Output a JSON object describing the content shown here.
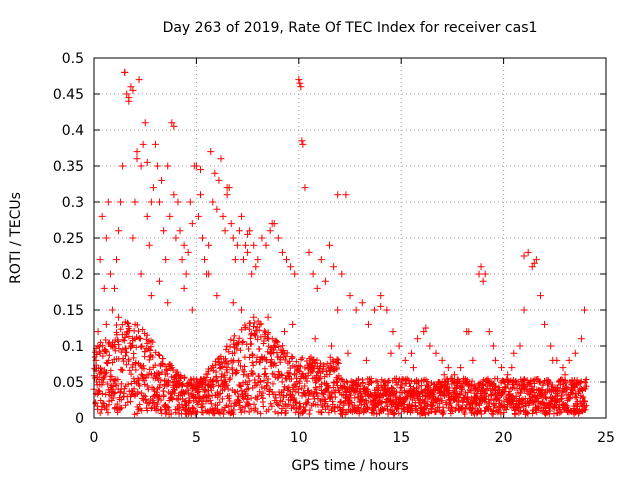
{
  "chart_data": {
    "type": "scatter",
    "title": "Day 263 of 2019, Rate Of TEC Index for receiver cas1",
    "xlabel": "GPS time / hours",
    "ylabel": "ROTI / TECUs",
    "xlim": [
      0,
      25
    ],
    "ylim": [
      0,
      0.5
    ],
    "xticks": [
      0,
      5,
      10,
      15,
      20,
      25
    ],
    "xtick_labels": [
      "0",
      "5",
      "10",
      "15",
      "20",
      "25"
    ],
    "yticks": [
      0,
      0.05,
      0.1,
      0.15,
      0.2,
      0.25,
      0.3,
      0.35,
      0.4,
      0.45,
      0.5
    ],
    "ytick_labels": [
      "0",
      "0.05",
      "0.1",
      "0.15",
      "0.2",
      "0.25",
      "0.3",
      "0.35",
      "0.4",
      "0.45",
      "0.5"
    ],
    "grid": true,
    "marker": "+",
    "series_color": "#ff0000",
    "series": [
      {
        "name": "ROTI",
        "x": [
          0.0,
          0.1,
          0.2,
          0.3,
          0.4,
          0.5,
          0.6,
          0.7,
          0.8,
          0.9,
          1.0,
          1.1,
          1.2,
          1.3,
          1.4,
          1.5,
          1.6,
          1.7,
          1.8,
          1.9,
          2.0,
          2.1,
          2.2,
          2.3,
          2.4,
          2.5,
          2.6,
          2.7,
          2.8,
          2.9,
          3.0,
          3.1,
          3.2,
          3.3,
          3.4,
          3.5,
          3.6,
          3.7,
          3.8,
          3.9,
          4.0,
          4.1,
          4.2,
          4.3,
          4.4,
          4.5,
          4.6,
          4.7,
          4.8,
          4.9,
          5.0,
          5.1,
          5.2,
          5.3,
          5.4,
          5.5,
          5.6,
          5.7,
          5.8,
          5.9,
          6.0,
          6.1,
          6.2,
          6.3,
          6.4,
          6.5,
          6.6,
          6.7,
          6.8,
          6.9,
          7.0,
          7.1,
          7.2,
          7.3,
          7.4,
          7.5,
          7.6,
          7.7,
          7.8,
          7.9,
          8.0,
          8.2,
          8.4,
          8.6,
          8.8,
          9.0,
          9.2,
          9.4,
          9.6,
          9.8,
          10.0,
          10.1,
          10.2,
          10.3,
          10.5,
          10.7,
          10.9,
          11.1,
          11.3,
          11.5,
          11.7,
          11.9,
          12.1,
          12.3,
          12.5,
          12.8,
          13.1,
          13.4,
          13.7,
          14.0,
          14.3,
          14.6,
          14.9,
          15.2,
          15.5,
          15.8,
          16.1,
          16.4,
          16.7,
          17.0,
          17.3,
          17.6,
          17.9,
          18.2,
          18.5,
          18.8,
          18.9,
          19.0,
          19.1,
          19.3,
          19.6,
          19.9,
          20.2,
          20.5,
          20.8,
          21.0,
          21.2,
          21.4,
          21.6,
          21.8,
          22.0,
          22.3,
          22.6,
          22.9,
          23.2,
          23.5,
          23.8,
          23.95,
          1.5,
          1.7,
          1.9,
          2.1,
          2.3,
          10.05,
          10.15,
          3.9,
          2.6,
          5.2,
          6.5,
          7.5,
          8.7,
          11.9,
          14.0,
          16.2,
          18.3,
          21.0,
          21.5,
          0.3,
          0.6,
          0.9,
          1.2,
          2.8,
          3.2,
          3.6,
          4.4,
          4.8,
          5.6,
          6.0,
          6.8,
          7.2,
          7.8,
          8.1,
          8.5,
          9.3,
          9.7,
          10.8,
          11.6,
          12.4,
          13.3,
          14.5,
          15.6,
          17.1,
          19.5,
          20.4,
          22.4,
          23.0
        ],
        "y": [
          0.04,
          0.08,
          0.12,
          0.22,
          0.28,
          0.18,
          0.25,
          0.3,
          0.2,
          0.15,
          0.18,
          0.22,
          0.26,
          0.3,
          0.35,
          0.48,
          0.45,
          0.44,
          0.46,
          0.25,
          0.3,
          0.36,
          0.47,
          0.2,
          0.38,
          0.41,
          0.28,
          0.24,
          0.3,
          0.32,
          0.38,
          0.35,
          0.3,
          0.33,
          0.26,
          0.22,
          0.35,
          0.28,
          0.41,
          0.31,
          0.25,
          0.3,
          0.26,
          0.22,
          0.24,
          0.2,
          0.23,
          0.3,
          0.27,
          0.35,
          0.35,
          0.28,
          0.31,
          0.25,
          0.22,
          0.2,
          0.24,
          0.37,
          0.3,
          0.34,
          0.29,
          0.33,
          0.36,
          0.28,
          0.26,
          0.31,
          0.32,
          0.27,
          0.25,
          0.22,
          0.24,
          0.26,
          0.28,
          0.22,
          0.24,
          0.23,
          0.26,
          0.2,
          0.24,
          0.21,
          0.22,
          0.25,
          0.24,
          0.26,
          0.27,
          0.25,
          0.23,
          0.22,
          0.21,
          0.2,
          0.47,
          0.46,
          0.38,
          0.32,
          0.23,
          0.2,
          0.18,
          0.22,
          0.19,
          0.24,
          0.21,
          0.15,
          0.2,
          0.31,
          0.17,
          0.15,
          0.16,
          0.13,
          0.15,
          0.17,
          0.15,
          0.12,
          0.1,
          0.08,
          0.09,
          0.11,
          0.12,
          0.1,
          0.09,
          0.08,
          0.07,
          0.06,
          0.07,
          0.12,
          0.08,
          0.2,
          0.21,
          0.19,
          0.2,
          0.12,
          0.08,
          0.07,
          0.06,
          0.09,
          0.1,
          0.15,
          0.23,
          0.21,
          0.22,
          0.17,
          0.13,
          0.1,
          0.08,
          0.07,
          0.08,
          0.09,
          0.11,
          0.15,
          0.48,
          0.445,
          0.455,
          0.37,
          0.35,
          0.465,
          0.385,
          0.405,
          0.355,
          0.345,
          0.32,
          0.255,
          0.27,
          0.31,
          0.155,
          0.125,
          0.12,
          0.225,
          0.215,
          0.09,
          0.13,
          0.1,
          0.14,
          0.17,
          0.19,
          0.16,
          0.18,
          0.15,
          0.2,
          0.17,
          0.16,
          0.15,
          0.14,
          0.13,
          0.14,
          0.12,
          0.13,
          0.11,
          0.1,
          0.09,
          0.08,
          0.09,
          0.07,
          0.06,
          0.1,
          0.07,
          0.08,
          0.06
        ]
      }
    ]
  }
}
